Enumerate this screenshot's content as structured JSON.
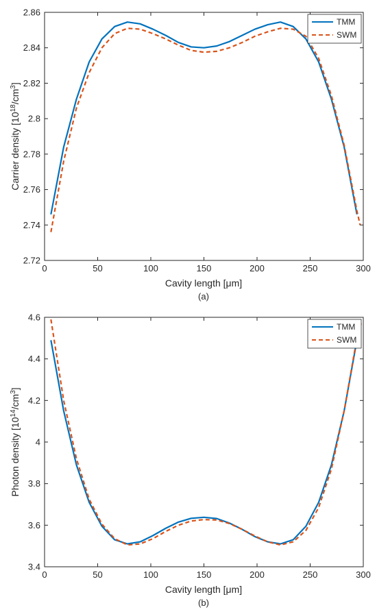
{
  "colors": {
    "tmm": "#0072BD",
    "swm": "#D95319",
    "axis": "#262626"
  },
  "chart_data": [
    {
      "type": "line",
      "panel_label": "(a)",
      "xlabel": "Cavity length [μm]",
      "ylabel": "Carrier density [10^18/cm^3]",
      "xlim": [
        0,
        300
      ],
      "ylim": [
        2.72,
        2.86
      ],
      "xticks": [
        0,
        50,
        100,
        150,
        200,
        250,
        300
      ],
      "xtick_labels": [
        "0",
        "50",
        "100",
        "150",
        "200",
        "250",
        "300"
      ],
      "yticks": [
        2.72,
        2.74,
        2.76,
        2.78,
        2.8,
        2.82,
        2.84,
        2.86
      ],
      "ytick_labels": [
        "2.72",
        "2.74",
        "2.76",
        "2.78",
        "2.8",
        "2.82",
        "2.84",
        "2.86"
      ],
      "grid": false,
      "legend_position": "top-right",
      "series": [
        {
          "name": "TMM",
          "style": "solid",
          "x": [
            6,
            18,
            30,
            42,
            54,
            66,
            78,
            90,
            102,
            114,
            126,
            138,
            150,
            162,
            174,
            186,
            198,
            210,
            222,
            234,
            246,
            258,
            270,
            282,
            294
          ],
          "y": [
            2.746,
            2.784,
            2.811,
            2.832,
            2.845,
            2.852,
            2.8545,
            2.8535,
            2.8505,
            2.847,
            2.843,
            2.8405,
            2.84,
            2.841,
            2.8435,
            2.847,
            2.8505,
            2.853,
            2.8545,
            2.852,
            2.845,
            2.832,
            2.811,
            2.784,
            2.746
          ]
        },
        {
          "name": "SWM",
          "style": "dashed",
          "x": [
            6,
            18,
            30,
            42,
            54,
            66,
            78,
            90,
            102,
            114,
            126,
            138,
            150,
            162,
            174,
            186,
            198,
            210,
            222,
            234,
            246,
            258,
            270,
            282,
            294,
            297
          ],
          "y": [
            2.736,
            2.776,
            2.806,
            2.826,
            2.84,
            2.848,
            2.851,
            2.8505,
            2.848,
            2.845,
            2.8415,
            2.8385,
            2.8375,
            2.838,
            2.84,
            2.843,
            2.8465,
            2.849,
            2.851,
            2.8505,
            2.8465,
            2.834,
            2.813,
            2.785,
            2.748,
            2.74
          ]
        }
      ]
    },
    {
      "type": "line",
      "panel_label": "(b)",
      "xlabel": "Cavity length [μm]",
      "ylabel": "Photon density [10^14/cm^3]",
      "xlim": [
        0,
        300
      ],
      "ylim": [
        3.4,
        4.6
      ],
      "xticks": [
        0,
        50,
        100,
        150,
        200,
        250,
        300
      ],
      "xtick_labels": [
        "0",
        "50",
        "100",
        "150",
        "200",
        "250",
        "300"
      ],
      "yticks": [
        3.4,
        3.6,
        3.8,
        4.0,
        4.2,
        4.4,
        4.6
      ],
      "ytick_labels": [
        "3.4",
        "3.6",
        "3.8",
        "4",
        "4.2",
        "4.4",
        "4.6"
      ],
      "grid": false,
      "legend_position": "top-right",
      "series": [
        {
          "name": "TMM",
          "style": "solid",
          "x": [
            6,
            18,
            30,
            42,
            54,
            66,
            78,
            90,
            102,
            114,
            126,
            138,
            150,
            162,
            174,
            186,
            198,
            210,
            222,
            234,
            246,
            258,
            270,
            282,
            294
          ],
          "y": [
            4.49,
            4.15,
            3.89,
            3.71,
            3.595,
            3.53,
            3.51,
            3.52,
            3.55,
            3.585,
            3.615,
            3.633,
            3.638,
            3.632,
            3.61,
            3.58,
            3.545,
            3.52,
            3.51,
            3.53,
            3.595,
            3.71,
            3.89,
            4.15,
            4.49
          ]
        },
        {
          "name": "SWM",
          "style": "dashed",
          "x": [
            6,
            18,
            30,
            42,
            54,
            66,
            78,
            90,
            102,
            114,
            126,
            138,
            150,
            162,
            174,
            186,
            198,
            210,
            222,
            234,
            246,
            258,
            270,
            282,
            294,
            298
          ],
          "y": [
            4.59,
            4.2,
            3.92,
            3.725,
            3.605,
            3.535,
            3.505,
            3.51,
            3.535,
            3.57,
            3.6,
            3.62,
            3.627,
            3.625,
            3.608,
            3.58,
            3.548,
            3.52,
            3.505,
            3.52,
            3.575,
            3.685,
            3.87,
            4.15,
            4.5,
            4.57
          ]
        }
      ]
    }
  ]
}
